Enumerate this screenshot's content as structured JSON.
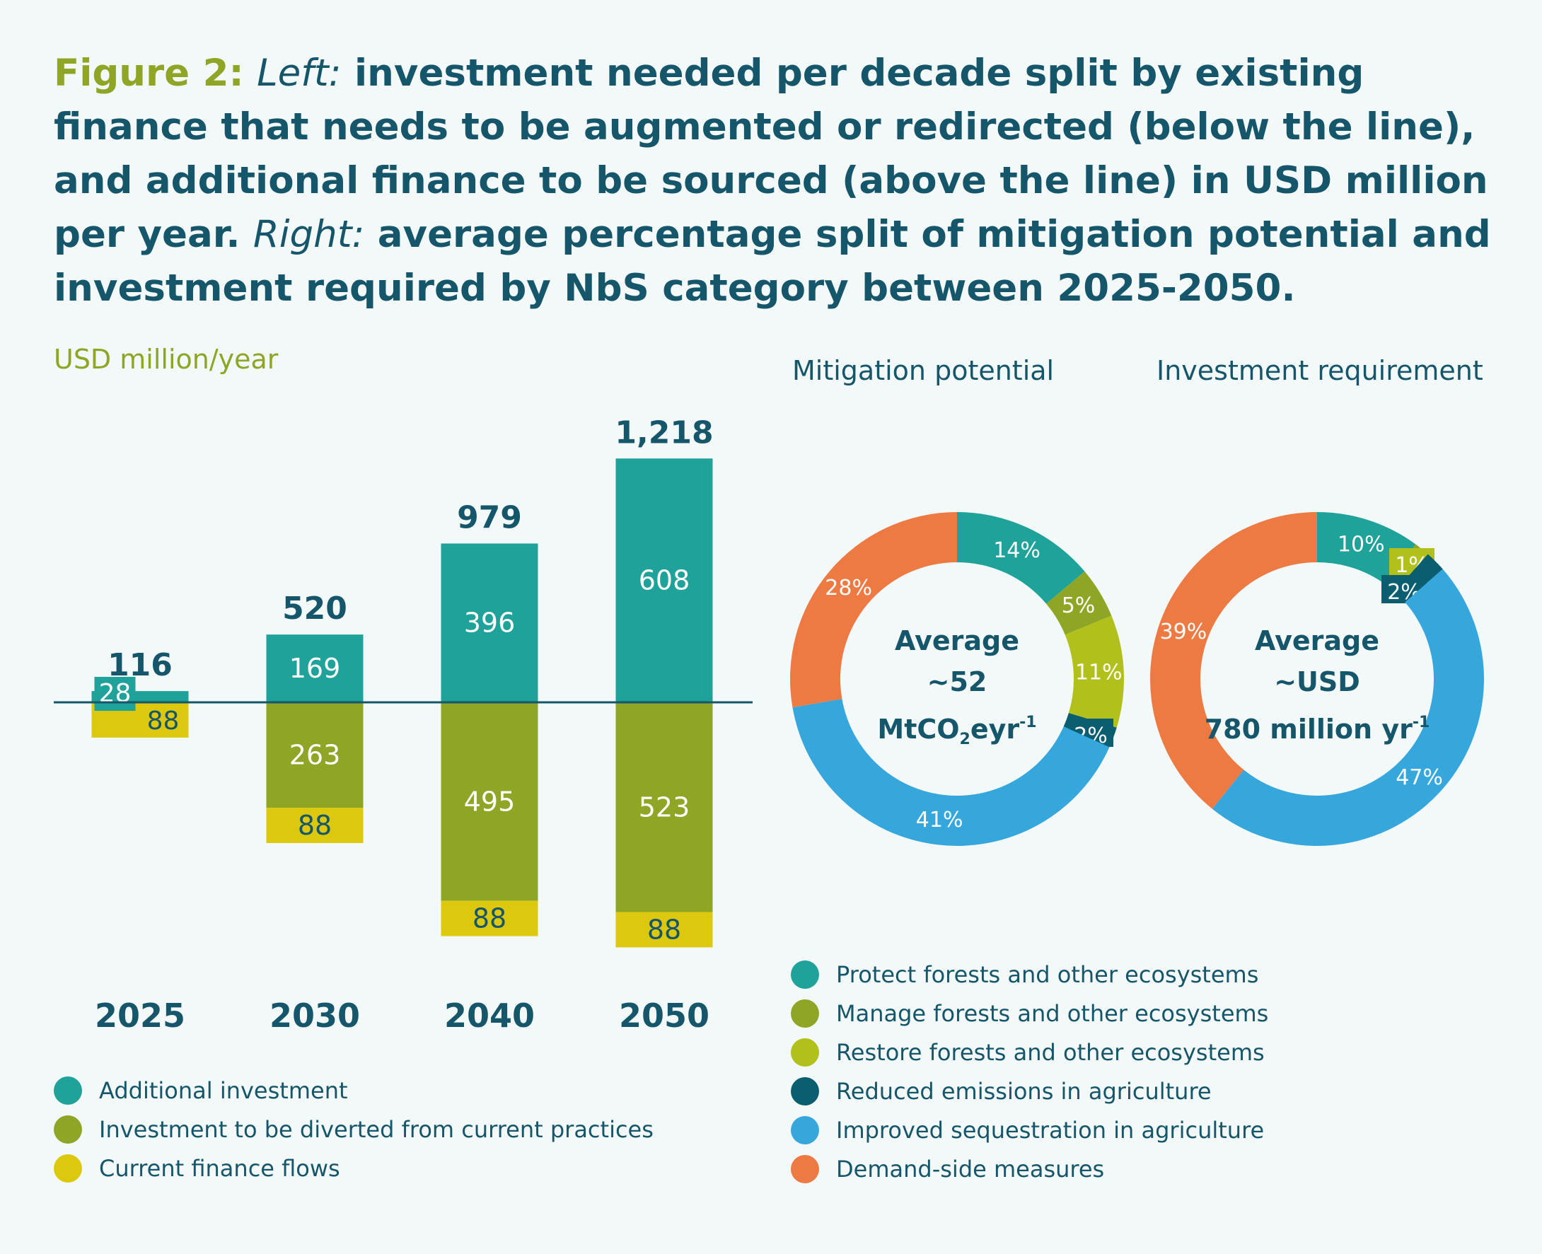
{
  "title": {
    "figure": "Figure 2:",
    "left_word": "Left:",
    "left_text": "investment needed per decade split by existing finance that needs to be augmented or redirected (below the line), and additional finance to be sourced (above the line) in USD million per year.",
    "right_word": "Right:",
    "right_text": "average percentage split of mitigation potential and investment required by NbS category between 2025-2050."
  },
  "colors": {
    "teal": "#1fa29a",
    "olive": "#8ea526",
    "yellow": "#dcc80d",
    "lime": "#b1c01a",
    "dark_teal": "#0b5d70",
    "blue": "#35a7dd",
    "orange": "#ed7a42",
    "text": "#15566a"
  },
  "chart_data": [
    {
      "type": "bar",
      "ylabel": "USD million/year",
      "categories": [
        "2025",
        "2030",
        "2040",
        "2050"
      ],
      "totals": [
        "116",
        "520",
        "979",
        "1,218"
      ],
      "series": [
        {
          "name": "Additional investment",
          "position": "above the line",
          "color": "#1fa29a",
          "values": [
            28,
            169,
            396,
            608
          ]
        },
        {
          "name": "Investment to be diverted from current practices",
          "position": "below the line",
          "color": "#8ea526",
          "values": [
            0,
            263,
            495,
            523
          ]
        },
        {
          "name": "Current finance flows",
          "position": "below the line",
          "color": "#dcc80d",
          "values": [
            88,
            88,
            88,
            88
          ]
        }
      ]
    },
    {
      "type": "pie",
      "title": "Mitigation potential",
      "center": {
        "line1": "Average",
        "line2": "~52",
        "line3_main": "MtCO",
        "line3_sub": "2",
        "line3_after": "eyr",
        "line3_sup": "-1"
      },
      "slices": [
        {
          "name": "Protect forests and other ecosystems",
          "value": 14,
          "label": "14%",
          "color": "#1fa29a"
        },
        {
          "name": "Manage forests and other ecosystems",
          "value": 5,
          "label": "5%",
          "color": "#8ea526"
        },
        {
          "name": "Restore forests and other ecosystems",
          "value": 11,
          "label": "11%",
          "color": "#b1c01a"
        },
        {
          "name": "Reduced emissions in agriculture",
          "value": 2,
          "label": "2%",
          "color": "#0b5d70"
        },
        {
          "name": "Improved sequestration in agriculture",
          "value": 41,
          "label": "41%",
          "color": "#35a7dd"
        },
        {
          "name": "Demand-side measures",
          "value": 28,
          "label": "28%",
          "color": "#ed7a42"
        }
      ]
    },
    {
      "type": "pie",
      "title": "Investment requirement",
      "center": {
        "line1": "Average",
        "line2": "~USD",
        "line3_main": "780 million yr",
        "line3_sup": "-1"
      },
      "slices": [
        {
          "name": "Protect forests and other ecosystems",
          "value": 10,
          "label": "10%",
          "color": "#1fa29a"
        },
        {
          "name": "Manage forests and other ecosystems",
          "value": 0.5,
          "label": "",
          "color": "#8ea526"
        },
        {
          "name": "Restore forests and other ecosystems",
          "value": 1,
          "label": "1%",
          "color": "#b1c01a"
        },
        {
          "name": "Reduced emissions in agriculture",
          "value": 2,
          "label": "2%",
          "color": "#0b5d70"
        },
        {
          "name": "Improved sequestration in agriculture",
          "value": 47,
          "label": "47%",
          "color": "#35a7dd"
        },
        {
          "name": "Demand-side measures",
          "value": 39,
          "label": "39%",
          "color": "#ed7a42"
        }
      ]
    }
  ],
  "legend_bars": [
    {
      "label": "Additional investment",
      "color": "#1fa29a"
    },
    {
      "label": "Investment to be diverted from current practices",
      "color": "#8ea526"
    },
    {
      "label": "Current finance flows",
      "color": "#dcc80d"
    }
  ],
  "legend_pies": [
    {
      "label": "Protect forests and other ecosystems",
      "color": "#1fa29a"
    },
    {
      "label": "Manage forests and other ecosystems",
      "color": "#8ea526"
    },
    {
      "label": "Restore forests and other ecosystems",
      "color": "#b1c01a"
    },
    {
      "label": "Reduced emissions in agriculture",
      "color": "#0b5d70"
    },
    {
      "label": "Improved sequestration in agriculture",
      "color": "#35a7dd"
    },
    {
      "label": "Demand-side measures",
      "color": "#ed7a42"
    }
  ]
}
